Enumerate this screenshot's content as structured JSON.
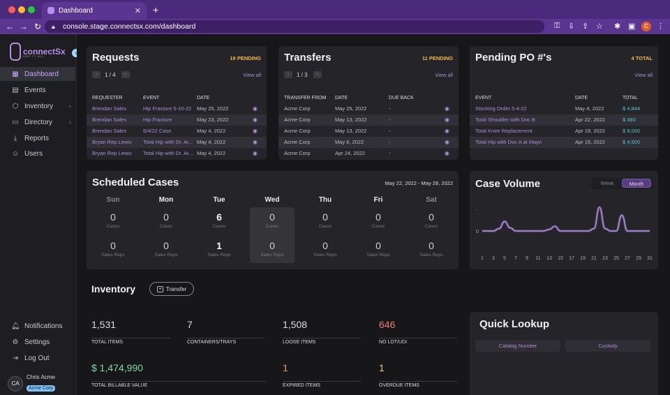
{
  "browser": {
    "tab_title": "Dashboard",
    "url": "console.stage.connectsx.com/dashboard",
    "profile_initial": "C"
  },
  "sidebar": {
    "brand": "connectSx",
    "brand_tagline": "SEE IT ALL",
    "items": [
      {
        "label": "Dashboard",
        "icon": "grid-icon",
        "active": true
      },
      {
        "label": "Events",
        "icon": "calendar-icon"
      },
      {
        "label": "Inventory",
        "icon": "box-icon",
        "expandable": true
      },
      {
        "label": "Directory",
        "icon": "folder-icon",
        "expandable": true
      },
      {
        "label": "Reports",
        "icon": "download-icon"
      },
      {
        "label": "Users",
        "icon": "users-icon"
      }
    ],
    "bottom_items": [
      {
        "label": "Notifications",
        "icon": "bell-icon"
      },
      {
        "label": "Settings",
        "icon": "gear-icon"
      },
      {
        "label": "Log Out",
        "icon": "logout-icon"
      }
    ],
    "user": {
      "initials": "CA",
      "name": "Chris Acme",
      "company": "Acme Corp"
    }
  },
  "requests": {
    "title": "Requests",
    "pending": "19 PENDING",
    "page": "1 / 4",
    "view_all": "View all",
    "columns": [
      "REQUESTER",
      "EVENT",
      "DATE"
    ],
    "rows": [
      [
        "Brendan Sales",
        "Hip Fracture 5-10-22",
        "May 25, 2022"
      ],
      [
        "Brendan Sales",
        "Hip Fracture",
        "May 23, 2022"
      ],
      [
        "Brendan Sales",
        "5/4/22 Case",
        "May 4, 2022"
      ],
      [
        "Bryan Rep Lewis",
        "Total Hip with Dr. Ar...",
        "May 4, 2022"
      ],
      [
        "Bryan Rep Lewis",
        "Total Hip with Dr. Ar...",
        "May 4, 2022"
      ]
    ]
  },
  "transfers": {
    "title": "Transfers",
    "pending": "11 PENDING",
    "page": "1 / 3",
    "view_all": "View all",
    "columns": [
      "TRANSFER FROM",
      "DATE",
      "DUE BACK"
    ],
    "rows": [
      [
        "Acme Corp",
        "May 25, 2022",
        "-"
      ],
      [
        "Acme Corp",
        "May 13, 2022",
        "-"
      ],
      [
        "Acme Corp",
        "May 13, 2022",
        "-"
      ],
      [
        "Acme Corp",
        "May 6, 2022",
        "-"
      ],
      [
        "Acme Corp",
        "Apr 24, 2022",
        "-"
      ]
    ]
  },
  "pending_po": {
    "title": "Pending PO #'s",
    "total": "4 TOTAL",
    "view_all": "View all",
    "columns": [
      "EVENT",
      "DATE",
      "TOTAL"
    ],
    "rows": [
      [
        "Stocking Order 5-4-22",
        "May 4, 2022",
        "$ 4,844"
      ],
      [
        "Total Shoulder with Doc B",
        "Apr 22, 2022",
        "$ 480"
      ],
      [
        "Total Knee Replacement",
        "Apr 19, 2022",
        "$ 9,000"
      ],
      [
        "Total Hip with Doc A at Mayo",
        "Apr 19, 2022",
        "$ 4,500"
      ]
    ]
  },
  "scheduled": {
    "title": "Scheduled Cases",
    "range": "May 22, 2022 - May 28, 2022",
    "cases_label": "Cases",
    "reps_label": "Sales Reps",
    "days": [
      {
        "name": "Sun",
        "cases": "0",
        "reps": "0",
        "weekend": true
      },
      {
        "name": "Mon",
        "cases": "0",
        "reps": "0"
      },
      {
        "name": "Tue",
        "cases": "6",
        "reps": "1"
      },
      {
        "name": "Wed",
        "cases": "0",
        "reps": "0",
        "today": true
      },
      {
        "name": "Thu",
        "cases": "0",
        "reps": "0"
      },
      {
        "name": "Fri",
        "cases": "0",
        "reps": "0"
      },
      {
        "name": "Sat",
        "cases": "0",
        "reps": "0",
        "weekend": true
      }
    ]
  },
  "case_volume": {
    "title": "Case Volume",
    "toggle": [
      "Week",
      "Month"
    ],
    "selected": "Month"
  },
  "chart_data": {
    "type": "line",
    "title": "Case Volume",
    "x": [
      1,
      2,
      3,
      4,
      5,
      6,
      7,
      8,
      9,
      10,
      11,
      12,
      13,
      14,
      15,
      16,
      17,
      18,
      19,
      20,
      21,
      22,
      23,
      24,
      25,
      26,
      27,
      28,
      29,
      30,
      31
    ],
    "x_tick_labels": [
      "1",
      "3",
      "5",
      "7",
      "9",
      "11",
      "13",
      "15",
      "17",
      "19",
      "21",
      "23",
      "25",
      "27",
      "29",
      "31"
    ],
    "series": [
      {
        "values": [
          0,
          0,
          0,
          0.3,
          1.2,
          0.4,
          0,
          0,
          0,
          0,
          0,
          0,
          0.2,
          0.6,
          0,
          0,
          0,
          0,
          0,
          0,
          0.3,
          3,
          0.3,
          0,
          0,
          2,
          0,
          0,
          0,
          0,
          0
        ],
        "color": "#b690e8"
      }
    ],
    "y_tick_labels": [
      "0"
    ],
    "grid": false
  },
  "inventory": {
    "title": "Inventory",
    "transfer_label": "Transfer",
    "stats": [
      {
        "value": "1,531",
        "label": "TOTAL ITEMS",
        "color": "#dedee3"
      },
      {
        "value": "7",
        "label": "CONTAINERS/TRAYS",
        "color": "#dedee3"
      },
      {
        "value": "1,508",
        "label": "LOOSE ITEMS",
        "color": "#dedee3"
      },
      {
        "value": "646",
        "label": "NO LOT/UDI",
        "color": "#f07a7a"
      },
      {
        "value": "$ 1,474,990",
        "label": "TOTAL BILLABLE VALUE",
        "color": "#7bd9a8"
      },
      {
        "value": "1",
        "label": "EXPIRED ITEMS",
        "color": "#f29a6a"
      },
      {
        "value": "1",
        "label": "OVERDUE ITEMS",
        "color": "#f2c46a"
      }
    ]
  },
  "quick_lookup": {
    "title": "Quick Lookup",
    "tabs": [
      "Catalog Number",
      "Custody"
    ]
  }
}
